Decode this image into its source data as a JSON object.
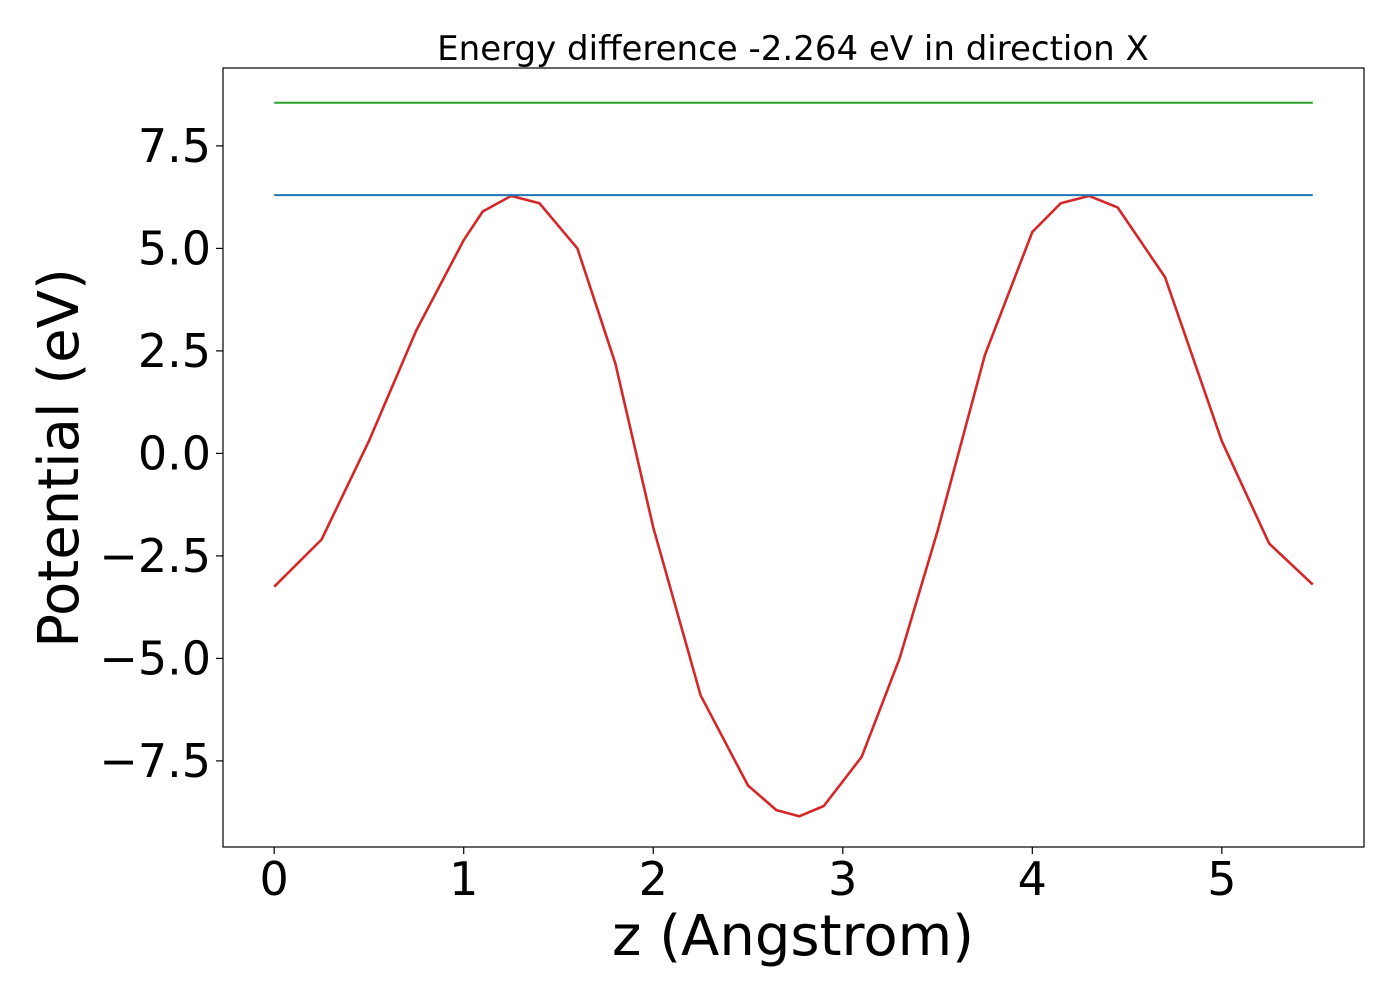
{
  "chart_data": {
    "type": "line",
    "title": "Energy difference -2.264 eV in direction X",
    "xlabel": "z (Angstrom)",
    "ylabel": "Potential (eV)",
    "xlim": [
      -0.27,
      5.75
    ],
    "ylim": [
      -9.6,
      9.4
    ],
    "xticks": [
      0,
      1,
      2,
      3,
      4,
      5
    ],
    "xtick_labels": [
      "0",
      "1",
      "2",
      "3",
      "4",
      "5"
    ],
    "yticks": [
      -7.5,
      -5.0,
      -2.5,
      0.0,
      2.5,
      5.0,
      7.5
    ],
    "ytick_labels": [
      "−7.5",
      "−5.0",
      "−2.5",
      "0.0",
      "2.5",
      "5.0",
      "7.5"
    ],
    "grid": false,
    "series": [
      {
        "color": "#d62728",
        "x": [
          0.0,
          0.25,
          0.5,
          0.75,
          1.0,
          1.1,
          1.25,
          1.4,
          1.6,
          1.8,
          2.0,
          2.25,
          2.5,
          2.65,
          2.77,
          2.9,
          3.1,
          3.3,
          3.5,
          3.75,
          4.0,
          4.15,
          4.3,
          4.45,
          4.7,
          5.0,
          5.25,
          5.48
        ],
        "y": [
          -3.25,
          -2.1,
          0.3,
          3.0,
          5.2,
          5.9,
          6.28,
          6.1,
          5.0,
          2.2,
          -1.8,
          -5.9,
          -8.1,
          -8.7,
          -8.85,
          -8.6,
          -7.4,
          -5.0,
          -1.9,
          2.4,
          5.4,
          6.1,
          6.28,
          6.0,
          4.3,
          0.3,
          -2.2,
          -3.2
        ]
      },
      {
        "color": "#1f77b4",
        "x": [
          0.0,
          5.48
        ],
        "y": [
          6.3,
          6.3
        ]
      },
      {
        "color": "#2ca02c",
        "x": [
          0.0,
          5.48
        ],
        "y": [
          8.55,
          8.55
        ]
      }
    ]
  }
}
